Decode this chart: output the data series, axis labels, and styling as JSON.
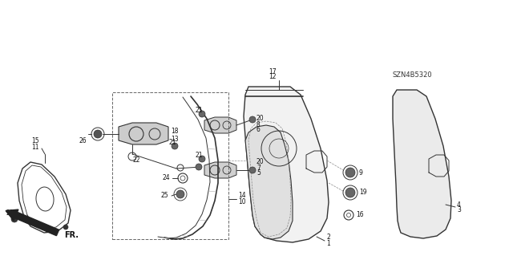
{
  "bg_color": "#ffffff",
  "line_color": "#333333",
  "diagram_code": "SZN4B5320",
  "figsize": [
    6.4,
    3.19
  ],
  "dpi": 100
}
